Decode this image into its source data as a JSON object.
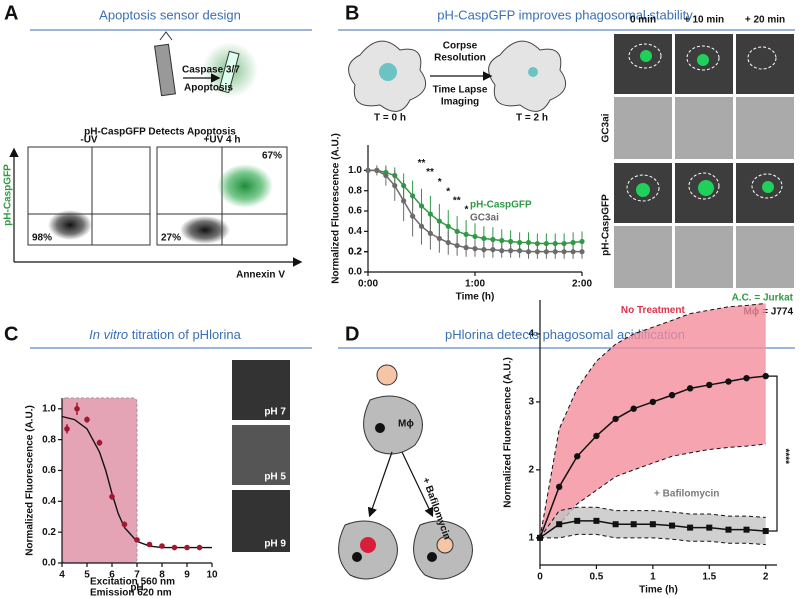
{
  "panels": {
    "a": {
      "letter": "A",
      "title": "Apoptosis sensor design",
      "caspase": "Caspase 3/7",
      "apoptosis": "Apoptosis",
      "subtitle": "pH-CaspGFP Detects Apoptosis",
      "plots": [
        {
          "label": "-UV",
          "percent": "98%"
        },
        {
          "label": "+UV 4 h",
          "percent": "27%",
          "percent_top": "67%"
        }
      ],
      "y_label": "pH-CaspGFP",
      "x_label": "Annexin V"
    },
    "b": {
      "letter": "B",
      "title": "pH-CaspGFP improves phagosomal stability",
      "step1": [
        "Corpse",
        "Resolution"
      ],
      "step2": [
        "Time Lapse",
        "Imaging"
      ],
      "t0": "T = 0 h",
      "t2": "T = 2 h",
      "timepoints": [
        "0 min",
        "+ 10 min",
        "+ 20 min"
      ],
      "rows": [
        "GC3ai",
        "pH-CaspGFP"
      ],
      "legend_ac": "A.C. = Jurkat",
      "legend_mphi": "Mϕ = J774"
    },
    "c": {
      "letter": "C",
      "images": [
        "pH 7",
        "pH 5",
        "pH 9"
      ],
      "excitation": "Excitation 560 nm",
      "emission": "Emission  620 nm"
    },
    "d": {
      "letter": "D",
      "mphi": "Mϕ",
      "bafilomycin": "+ Bafilomycin"
    }
  },
  "chart_data": [
    {
      "type": "line",
      "y_label": "Normalized Fluorescence (A.U.)",
      "x_label": "Time (h)",
      "x": [
        0,
        0.083,
        0.167,
        0.25,
        0.333,
        0.417,
        0.5,
        0.583,
        0.667,
        0.75,
        0.833,
        0.917,
        1,
        1.083,
        1.167,
        1.25,
        1.333,
        1.417,
        1.5,
        1.583,
        1.667,
        1.75,
        1.833,
        1.917,
        2
      ],
      "xlim": [
        0,
        2
      ],
      "xticks": [
        {
          "value": 0,
          "label": "0:00"
        },
        {
          "value": 1,
          "label": "1:00"
        },
        {
          "value": 2,
          "label": "2:00"
        }
      ],
      "ylim": [
        0,
        1.25
      ],
      "yticks": [
        {
          "value": 0,
          "label": "0.0"
        },
        0.2,
        0.4,
        0.6,
        0.8,
        {
          "value": 1,
          "label": "1.0"
        },
        0.2
      ],
      "series": [
        {
          "name": "pH-CaspGFP",
          "color": "#2f9a44",
          "values": [
            1.0,
            1.0,
            0.98,
            0.95,
            0.85,
            0.75,
            0.65,
            0.57,
            0.5,
            0.45,
            0.4,
            0.37,
            0.35,
            0.33,
            0.32,
            0.31,
            0.3,
            0.29,
            0.29,
            0.28,
            0.28,
            0.28,
            0.28,
            0.29,
            0.3
          ],
          "errors": [
            0,
            0.03,
            0.05,
            0.08,
            0.12,
            0.15,
            0.17,
            0.18,
            0.17,
            0.16,
            0.15,
            0.14,
            0.13,
            0.12,
            0.12,
            0.11,
            0.11,
            0.1,
            0.1,
            0.1,
            0.1,
            0.1,
            0.1,
            0.1,
            0.1
          ]
        },
        {
          "name": "GC3ai",
          "color": "#6b6b6b",
          "values": [
            1.0,
            1.0,
            0.95,
            0.85,
            0.7,
            0.55,
            0.45,
            0.38,
            0.33,
            0.29,
            0.26,
            0.24,
            0.23,
            0.22,
            0.22,
            0.21,
            0.21,
            0.21,
            0.2,
            0.2,
            0.2,
            0.2,
            0.2,
            0.2,
            0.2
          ],
          "errors": [
            0,
            0.05,
            0.1,
            0.15,
            0.2,
            0.2,
            0.18,
            0.16,
            0.14,
            0.12,
            0.1,
            0.09,
            0.08,
            0.08,
            0.08,
            0.07,
            0.07,
            0.07,
            0.07,
            0.07,
            0.07,
            0.07,
            0.07,
            0.07,
            0.07
          ]
        }
      ],
      "annotations": [
        {
          "text": "**",
          "x": 0.5,
          "y": 1.07
        },
        {
          "text": "**",
          "x": 0.58,
          "y": 0.98
        },
        {
          "text": "*",
          "x": 0.67,
          "y": 0.88
        },
        {
          "text": "*",
          "x": 0.75,
          "y": 0.79
        },
        {
          "text": "**",
          "x": 0.83,
          "y": 0.7
        },
        {
          "text": "*",
          "x": 0.92,
          "y": 0.61
        }
      ]
    },
    {
      "type": "scatter",
      "title_italic": "In vitro",
      "title": "titration of pHlorina",
      "y_label": "Normalized Fluorescence (A.U.)",
      "x_label": "pH",
      "x": [
        4.2,
        4.6,
        5.0,
        5.5,
        6.0,
        6.5,
        7.0,
        7.5,
        8.0,
        8.5,
        9.0,
        9.5
      ],
      "values": [
        0.87,
        1.0,
        0.93,
        0.78,
        0.43,
        0.25,
        0.15,
        0.12,
        0.11,
        0.1,
        0.1,
        0.1
      ],
      "errors": [
        0.03,
        0.04,
        0.02,
        0.02,
        0.02,
        0.02,
        0.01,
        0.01,
        0.01,
        0.01,
        0.01,
        0.01
      ],
      "color": "#a0182e",
      "fit": {
        "x": [
          4,
          4.5,
          5,
          5.5,
          5.75,
          6,
          6.25,
          6.5,
          7,
          7.5,
          8,
          9,
          10
        ],
        "values": [
          0.95,
          0.93,
          0.87,
          0.72,
          0.6,
          0.45,
          0.32,
          0.23,
          0.14,
          0.11,
          0.1,
          0.1,
          0.1
        ]
      },
      "shaded_region": [
        4,
        7
      ],
      "xlim": [
        4,
        10
      ],
      "xticks": [
        4,
        5,
        6,
        7,
        8,
        9,
        10
      ],
      "ylim": [
        0,
        1.07
      ],
      "yticks": [
        {
          "value": 0,
          "label": "0.0"
        },
        0.2,
        0.4,
        0.6,
        0.8,
        {
          "value": 1,
          "label": "1.0"
        }
      ]
    },
    {
      "type": "line",
      "title": "pHlorina detects phagosomal acidification",
      "y_label": "Normalized Fluorescence (A.U.)",
      "x_label": "Time (h)",
      "x": [
        0,
        0.17,
        0.33,
        0.5,
        0.67,
        0.83,
        1.0,
        1.17,
        1.33,
        1.5,
        1.67,
        1.83,
        2.0
      ],
      "xlim": [
        0,
        2.1
      ],
      "xticks": [
        0,
        0.5,
        1,
        1.5,
        2
      ],
      "ylim": [
        0.6,
        4.5
      ],
      "yticks": [
        1,
        2,
        3,
        4
      ],
      "series": [
        {
          "name": "No Treatment",
          "color": "#e0304a",
          "band_color": "#f28d9c",
          "values": [
            1.0,
            1.75,
            2.2,
            2.5,
            2.75,
            2.9,
            3.0,
            3.1,
            3.2,
            3.25,
            3.3,
            3.35,
            3.38
          ],
          "upper": [
            1.0,
            2.6,
            3.2,
            3.6,
            3.85,
            4.0,
            4.1,
            4.2,
            4.3,
            4.35,
            4.4,
            4.42,
            4.45
          ],
          "lower": [
            1.0,
            1.2,
            1.5,
            1.7,
            1.9,
            2.0,
            2.1,
            2.2,
            2.25,
            2.3,
            2.33,
            2.35,
            2.38
          ]
        },
        {
          "name": "+ Bafilomycin",
          "color": "#7a7a7a",
          "band_color": "#c4c4c4",
          "values": [
            1.0,
            1.2,
            1.25,
            1.25,
            1.2,
            1.2,
            1.2,
            1.18,
            1.15,
            1.15,
            1.12,
            1.12,
            1.1
          ],
          "upper": [
            1.0,
            1.4,
            1.45,
            1.45,
            1.4,
            1.4,
            1.4,
            1.38,
            1.35,
            1.35,
            1.32,
            1.32,
            1.3
          ],
          "lower": [
            1.0,
            1.0,
            1.05,
            1.05,
            1.0,
            1.0,
            1.0,
            0.98,
            0.95,
            0.95,
            0.92,
            0.92,
            0.9
          ]
        }
      ],
      "annotations": [
        {
          "text": "****",
          "x": 2.1,
          "y": 2.2
        }
      ]
    }
  ]
}
